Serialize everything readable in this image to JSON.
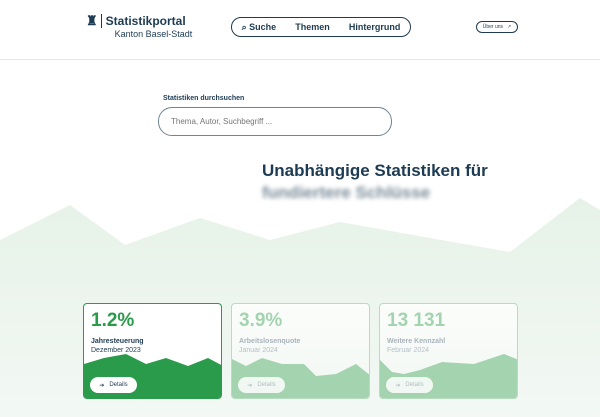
{
  "header": {
    "title": "Statistikportal",
    "subtitle": "Kanton Basel-Stadt",
    "nav": [
      "Suche",
      "Themen",
      "Hintergrund"
    ],
    "about": "Über uns"
  },
  "search": {
    "label": "Statistiken durchsuchen",
    "placeholder": "Thema, Autor, Suchbegriff ..."
  },
  "hero": {
    "line1": "Unabhängige Statistiken für",
    "line2": "fundiertere Schlüsse"
  },
  "cards": [
    {
      "value": "1.2%",
      "label": "Jahresteuerung",
      "date": "Dezember 2023",
      "button": "Details"
    },
    {
      "value": "3.9%",
      "label": "Arbeitslosenquote",
      "date": "Januar 2024",
      "button": "Details"
    },
    {
      "value": "13 131",
      "label": "Weitere Kennzahl",
      "date": "Februar 2024",
      "button": "Details"
    }
  ],
  "colors": {
    "accent": "#2a9a4b",
    "light": "#a4d3b0",
    "text": "#1d3b52"
  }
}
